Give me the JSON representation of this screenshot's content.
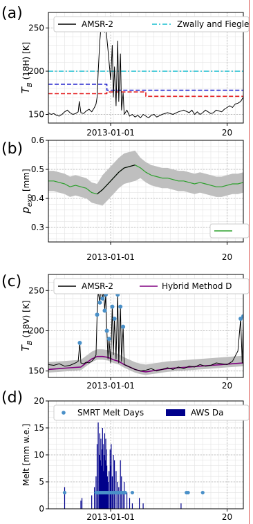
{
  "chart_data": [
    {
      "panel": "(a)",
      "type": "line",
      "ylabel": "T_B (18H) [K]",
      "ylim": [
        140,
        268
      ],
      "yticks": [
        150,
        200,
        250
      ],
      "xtick_labels": [
        "2013-01-01",
        "20"
      ],
      "grid": true,
      "legend": {
        "placement": "top",
        "entries": [
          "AMSR-2",
          "Zwally and Fiegle"
        ]
      },
      "colors": {
        "amsr2": "#000000",
        "zwally": "#17becf",
        "blue": "#1f1fcc",
        "red": "#e41a1c"
      },
      "series": [
        {
          "name": "AMSR-2",
          "x": [
            0,
            5,
            10,
            15,
            20,
            25,
            30,
            35,
            40,
            45,
            50,
            55,
            57,
            60,
            65,
            70,
            75,
            80,
            85,
            88,
            90,
            92,
            95,
            97,
            100,
            102,
            104,
            106,
            108,
            110,
            115,
            118,
            120,
            122,
            125,
            128,
            130,
            133,
            135,
            138,
            140,
            145,
            150,
            155,
            160,
            165,
            170,
            175,
            180,
            185,
            190,
            195,
            200,
            210,
            220,
            230,
            240,
            250,
            260,
            265,
            270,
            275,
            280,
            285,
            290,
            295,
            300,
            305,
            310,
            315,
            320,
            325,
            330,
            335,
            340,
            345,
            350,
            355,
            360
          ],
          "values": [
            152,
            150,
            151,
            149,
            148,
            150,
            153,
            155,
            152,
            150,
            151,
            153,
            165,
            152,
            151,
            154,
            156,
            153,
            158,
            162,
            170,
            200,
            235,
            250,
            255,
            258,
            245,
            255,
            238,
            225,
            190,
            230,
            170,
            205,
            160,
            235,
            165,
            220,
            155,
            175,
            150,
            155,
            148,
            150,
            147,
            149,
            146,
            150,
            148,
            146,
            149,
            150,
            147,
            150,
            152,
            150,
            153,
            155,
            152,
            155,
            150,
            153,
            150,
            152,
            155,
            153,
            151,
            152,
            155,
            154,
            153,
            156,
            158,
            160,
            158,
            162,
            163,
            165,
            170
          ]
        },
        {
          "name": "Zwally and Fiegle",
          "x": [
            0,
            360
          ],
          "values": [
            200,
            200
          ]
        },
        {
          "x": [
            0,
            108,
            108,
            360
          ],
          "values": [
            185,
            185,
            178,
            178
          ]
        },
        {
          "x": [
            0,
            108,
            108,
            180,
            180,
            360
          ],
          "values": [
            174,
            174,
            176,
            176,
            171,
            171
          ]
        }
      ]
    },
    {
      "panel": "(b)",
      "type": "line",
      "ylabel": "p_exp [mm]",
      "ylim": [
        0.25,
        0.6
      ],
      "yticks": [
        "0.3",
        "0.4",
        "0.5",
        "0.6"
      ],
      "xtick_labels": [
        "2013-01-01",
        "20"
      ],
      "grid": true,
      "legend": {
        "placement": "lower-right"
      },
      "colors": {
        "green": "#2ca02c",
        "black": "#000000",
        "band": "#bfbfbf"
      },
      "series": [
        {
          "x": [
            0,
            10,
            20,
            30,
            40,
            50,
            60,
            70,
            80,
            90,
            100,
            110,
            120,
            130,
            140,
            150,
            160,
            170,
            180,
            190,
            200,
            210,
            220,
            230,
            240,
            250,
            260,
            270,
            280,
            290,
            300,
            310,
            320,
            330,
            340,
            350,
            360
          ],
          "values": [
            0.46,
            0.46,
            0.455,
            0.45,
            0.44,
            0.445,
            0.44,
            0.435,
            0.42,
            0.415,
            0.43,
            0.45,
            0.47,
            0.49,
            0.505,
            0.51,
            0.515,
            0.505,
            0.49,
            0.48,
            0.475,
            0.47,
            0.47,
            0.465,
            0.46,
            0.46,
            0.455,
            0.45,
            0.455,
            0.45,
            0.445,
            0.44,
            0.44,
            0.445,
            0.45,
            0.45,
            0.455
          ]
        },
        {
          "x": [
            0,
            360
          ],
          "values": [
            0.44,
            0.46
          ]
        }
      ]
    },
    {
      "panel": "(c)",
      "type": "line",
      "ylabel": "T_B (18V) [K]",
      "ylim": [
        142,
        270
      ],
      "yticks": [
        150,
        200,
        250
      ],
      "xtick_labels": [
        "2013-01-01",
        "20"
      ],
      "grid": true,
      "legend": {
        "placement": "top",
        "entries": [
          "AMSR-2",
          "Hybrid Method D"
        ]
      },
      "colors": {
        "amsr2": "#000000",
        "hybrid": "#800080",
        "dots": "#4a90c8",
        "band": "#bfbfbf"
      },
      "series": [
        {
          "name": "AMSR-2",
          "x": [
            0,
            10,
            20,
            30,
            40,
            50,
            55,
            58,
            60,
            65,
            70,
            75,
            80,
            85,
            88,
            90,
            92,
            95,
            97,
            100,
            102,
            104,
            106,
            108,
            110,
            112,
            115,
            118,
            120,
            122,
            125,
            128,
            130,
            133,
            135,
            138,
            140,
            150,
            160,
            170,
            180,
            190,
            200,
            210,
            220,
            230,
            240,
            250,
            260,
            270,
            280,
            290,
            300,
            310,
            320,
            330,
            340,
            350,
            355,
            358,
            360
          ],
          "values": [
            158,
            157,
            159,
            156,
            157,
            160,
            162,
            185,
            160,
            159,
            161,
            160,
            162,
            166,
            170,
            220,
            250,
            235,
            255,
            240,
            250,
            225,
            245,
            200,
            165,
            190,
            160,
            230,
            170,
            215,
            165,
            245,
            160,
            230,
            162,
            205,
            158,
            155,
            152,
            150,
            151,
            153,
            150,
            152,
            154,
            152,
            155,
            153,
            156,
            155,
            158,
            156,
            157,
            160,
            159,
            158,
            162,
            175,
            215,
            160,
            218
          ]
        },
        {
          "name": "Hybrid Method D",
          "x": [
            0,
            20,
            40,
            60,
            70,
            80,
            90,
            100,
            110,
            120,
            130,
            140,
            150,
            160,
            170,
            180,
            190,
            200,
            210,
            220,
            240,
            260,
            280,
            300,
            320,
            340,
            360
          ],
          "values": [
            152,
            153,
            154,
            155,
            160,
            165,
            168,
            168,
            167,
            164,
            162,
            158,
            155,
            152,
            150,
            149,
            150,
            151,
            152,
            153,
            154,
            155,
            156,
            157,
            158,
            159,
            160
          ]
        }
      ]
    },
    {
      "panel": "(d)",
      "type": "bar",
      "ylabel": "Melt [mm w.e.]",
      "ylim": [
        0,
        20
      ],
      "yticks": [
        0,
        5,
        10,
        15,
        20
      ],
      "xtick_labels": [
        "2013-01-01",
        "20"
      ],
      "grid": true,
      "legend": {
        "placement": "top",
        "entries": [
          "SMRT Melt Days",
          "AWS Da"
        ]
      },
      "colors": {
        "bars": "#00008b",
        "dots": "#4a90c8"
      },
      "series": [
        {
          "name": "AWS Da",
          "x": [
            30,
            60,
            62,
            80,
            85,
            88,
            90,
            92,
            94,
            95,
            96,
            97,
            98,
            99,
            100,
            101,
            102,
            103,
            104,
            105,
            106,
            107,
            108,
            109,
            110,
            112,
            114,
            115,
            116,
            118,
            120,
            122,
            125,
            128,
            130,
            133,
            135,
            138,
            140,
            145,
            150,
            155,
            168,
            175,
            245
          ],
          "values": [
            4,
            1.5,
            2,
            2.5,
            4,
            6,
            12,
            16,
            10,
            14,
            9,
            13,
            8,
            11,
            15,
            12,
            7,
            10,
            14,
            9,
            13,
            11,
            8,
            6,
            5,
            7,
            11,
            8,
            12,
            6,
            10,
            9,
            7,
            5,
            4,
            9,
            6,
            3,
            5,
            3,
            2,
            1,
            2,
            1,
            1
          ]
        },
        {
          "name": "SMRT Melt Days",
          "x": [
            30,
            88,
            90,
            92,
            94,
            96,
            98,
            100,
            102,
            104,
            106,
            108,
            110,
            112,
            114,
            116,
            118,
            120,
            122,
            124,
            126,
            128,
            130,
            132,
            134,
            136,
            138,
            140,
            142,
            155,
            255,
            258,
            285
          ],
          "values": [
            3,
            3,
            3,
            3,
            3,
            3,
            3,
            3,
            3,
            3,
            3,
            3,
            3,
            3,
            3,
            3,
            3,
            3,
            3,
            3,
            3,
            3,
            3,
            3,
            3,
            3,
            3,
            3,
            3,
            3,
            3,
            3,
            3
          ]
        }
      ]
    }
  ]
}
